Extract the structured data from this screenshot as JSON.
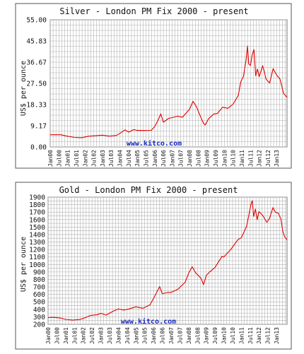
{
  "chart_data": [
    {
      "type": "line",
      "title": "Silver - London PM Fix 2000 - present",
      "ylabel": "US$ per ounce",
      "credit": "www.kitco.com",
      "yticks": [
        "0.00",
        "9.17",
        "18.33",
        "27.50",
        "36.67",
        "45.83",
        "55.00"
      ],
      "ylim": [
        0,
        55
      ],
      "xticks": [
        "Jan00",
        "Jul00",
        "Jan01",
        "Jul01",
        "Jan02",
        "Jul02",
        "Jan03",
        "Jul03",
        "Jan04",
        "Jul04",
        "Jan05",
        "Jul05",
        "Jan06",
        "Jul06",
        "Jan07",
        "Jul07",
        "Jan08",
        "Jul08",
        "Jan09",
        "Jul09",
        "Jan10",
        "Jul10",
        "Jan11",
        "Jul11",
        "Jan12",
        "Jul12",
        "Jan13"
      ],
      "xlim": [
        2000.0,
        2013.6
      ],
      "grid": true,
      "colors": {
        "line": "#e00000",
        "credit": "#1a2bbd"
      },
      "series": [
        {
          "x": [
            2000.0,
            2000.3,
            2000.6,
            2001.0,
            2001.4,
            2001.8,
            2002.2,
            2002.6,
            2003.0,
            2003.4,
            2003.8,
            2004.0,
            2004.3,
            2004.5,
            2004.8,
            2005.0,
            2005.4,
            2005.8,
            2006.0,
            2006.2,
            2006.35,
            2006.5,
            2006.8,
            2007.0,
            2007.3,
            2007.6,
            2008.0,
            2008.2,
            2008.4,
            2008.6,
            2008.8,
            2008.9,
            2009.1,
            2009.4,
            2009.6,
            2009.9,
            2010.2,
            2010.5,
            2010.8,
            2010.95,
            2011.1,
            2011.25,
            2011.33,
            2011.4,
            2011.5,
            2011.6,
            2011.7,
            2011.8,
            2011.9,
            2012.0,
            2012.2,
            2012.4,
            2012.6,
            2012.8,
            2013.0,
            2013.2,
            2013.4,
            2013.6
          ],
          "y": [
            5.3,
            5.0,
            5.0,
            4.6,
            4.4,
            4.3,
            4.7,
            4.6,
            4.8,
            4.6,
            5.2,
            6.2,
            7.5,
            6.2,
            7.2,
            7.0,
            7.3,
            7.5,
            9.0,
            11.5,
            14.0,
            10.5,
            12.5,
            13.0,
            13.5,
            12.8,
            16.0,
            19.5,
            17.5,
            14.0,
            10.5,
            9.5,
            12.0,
            14.0,
            14.5,
            17.5,
            17.0,
            18.5,
            22.0,
            28.0,
            30.5,
            38.0,
            44.0,
            36.0,
            35.0,
            39.5,
            42.0,
            31.0,
            34.0,
            30.5,
            35.0,
            29.0,
            27.5,
            34.0,
            31.5,
            29.5,
            23.0,
            21.5
          ]
        }
      ]
    },
    {
      "type": "line",
      "title": "Gold - London PM Fix 2000 - present",
      "ylabel": "US$ per ounce",
      "credit": "www.kitco.com",
      "yticks": [
        "200",
        "300",
        "400",
        "500",
        "600",
        "700",
        "800",
        "900",
        "1000",
        "1100",
        "1200",
        "1300",
        "1400",
        "1500",
        "1600",
        "1700",
        "1800",
        "1900"
      ],
      "ylim": [
        200,
        1900
      ],
      "xticks": [
        "Jan00",
        "Jul00",
        "Jan01",
        "Jul01",
        "Jan02",
        "Jul02",
        "Jan03",
        "Jul03",
        "Jan04",
        "Jul04",
        "Jan05",
        "Jul05",
        "Jan06",
        "Jul06",
        "Jan07",
        "Jul07",
        "Jan08",
        "Jul08",
        "Jan09",
        "Jul09",
        "Jan10",
        "Jul10",
        "Jan11",
        "Jul11",
        "Jan12",
        "Jul12",
        "Jan13"
      ],
      "xlim": [
        2000.0,
        2013.6
      ],
      "grid": true,
      "colors": {
        "line": "#e00000",
        "credit": "#1a2bbd"
      },
      "series": [
        {
          "x": [
            2000.0,
            2000.3,
            2000.7,
            2001.0,
            2001.4,
            2001.8,
            2002.0,
            2002.4,
            2002.8,
            2003.0,
            2003.3,
            2003.7,
            2004.0,
            2004.3,
            2004.6,
            2005.0,
            2005.4,
            2005.8,
            2006.0,
            2006.35,
            2006.5,
            2006.8,
            2007.0,
            2007.4,
            2007.8,
            2008.0,
            2008.2,
            2008.4,
            2008.7,
            2008.85,
            2009.0,
            2009.2,
            2009.5,
            2009.9,
            2010.0,
            2010.4,
            2010.8,
            2011.0,
            2011.3,
            2011.55,
            2011.62,
            2011.7,
            2011.8,
            2011.9,
            2012.0,
            2012.2,
            2012.45,
            2012.6,
            2012.8,
            2012.95,
            2013.1,
            2013.25,
            2013.35,
            2013.45,
            2013.6
          ],
          "y": [
            290,
            285,
            275,
            265,
            265,
            275,
            280,
            310,
            320,
            345,
            330,
            385,
            410,
            385,
            395,
            430,
            420,
            470,
            550,
            700,
            600,
            620,
            630,
            680,
            770,
            880,
            960,
            880,
            820,
            740,
            860,
            900,
            950,
            1100,
            1100,
            1210,
            1340,
            1360,
            1500,
            1800,
            1850,
            1650,
            1750,
            1600,
            1700,
            1650,
            1560,
            1620,
            1770,
            1700,
            1680,
            1600,
            1450,
            1380,
            1330
          ]
        }
      ]
    }
  ]
}
